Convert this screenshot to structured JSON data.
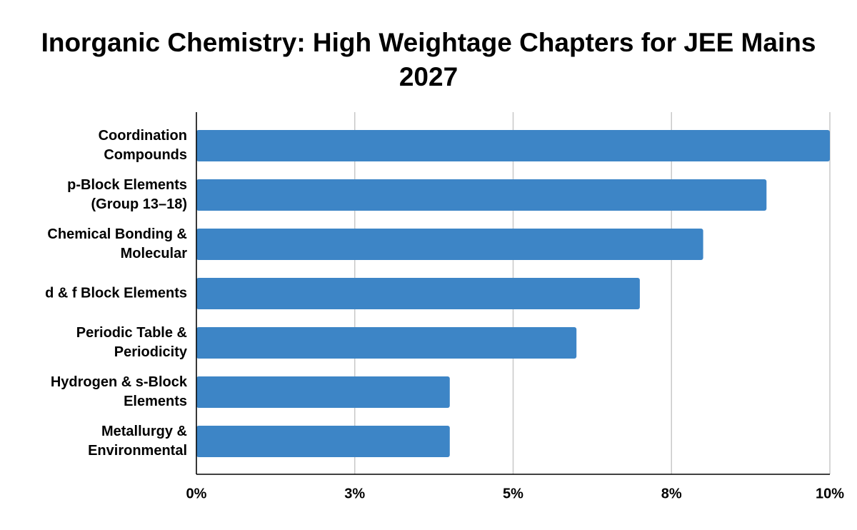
{
  "chart_data": {
    "type": "bar",
    "orientation": "horizontal",
    "title": "Inorganic Chemistry: High Weightage Chapters for JEE Mains 2027",
    "categories": [
      "Coordination Compounds",
      "p-Block Elements (Group 13–18)",
      "Chemical Bonding & Molecular",
      "d & f Block Elements",
      "Periodic Table & Periodicity",
      "Hydrogen & s-Block Elements",
      "Metallurgy & Environmental"
    ],
    "values": [
      10,
      9,
      8,
      7,
      6,
      4,
      4
    ],
    "color": "#3d85c6",
    "xlim": [
      0,
      10
    ],
    "xticks": [
      {
        "value": 0,
        "label": "0%"
      },
      {
        "value": 2.5,
        "label": "3%"
      },
      {
        "value": 5,
        "label": "5%"
      },
      {
        "value": 7.5,
        "label": "8%"
      },
      {
        "value": 10,
        "label": "10%"
      }
    ],
    "grid": true
  }
}
